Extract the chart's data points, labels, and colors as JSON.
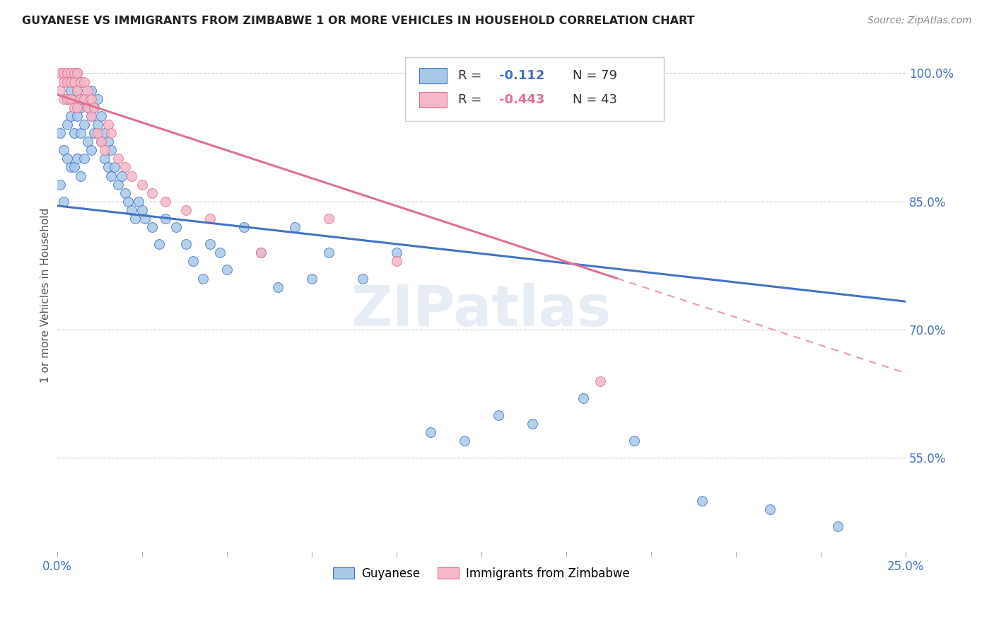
{
  "title": "GUYANESE VS IMMIGRANTS FROM ZIMBABWE 1 OR MORE VEHICLES IN HOUSEHOLD CORRELATION CHART",
  "source": "Source: ZipAtlas.com",
  "ylabel": "1 or more Vehicles in Household",
  "legend_blue_r_val": "-0.112",
  "legend_blue_n": "N = 79",
  "legend_pink_r_val": "-0.443",
  "legend_pink_n": "N = 43",
  "legend_label_blue": "Guyanese",
  "legend_label_pink": "Immigrants from Zimbabwe",
  "watermark": "ZIPatlas",
  "blue_color": "#a8c8e8",
  "pink_color": "#f4b8c8",
  "blue_line_color": "#4472C4",
  "pink_line_color": "#e07090",
  "blue_scatter": {
    "x": [
      0.001,
      0.001,
      0.002,
      0.002,
      0.003,
      0.003,
      0.003,
      0.004,
      0.004,
      0.004,
      0.005,
      0.005,
      0.005,
      0.005,
      0.006,
      0.006,
      0.006,
      0.006,
      0.007,
      0.007,
      0.007,
      0.007,
      0.008,
      0.008,
      0.008,
      0.009,
      0.009,
      0.01,
      0.01,
      0.01,
      0.011,
      0.011,
      0.012,
      0.012,
      0.013,
      0.013,
      0.014,
      0.014,
      0.015,
      0.015,
      0.016,
      0.016,
      0.017,
      0.018,
      0.019,
      0.02,
      0.021,
      0.022,
      0.023,
      0.024,
      0.025,
      0.026,
      0.028,
      0.03,
      0.032,
      0.035,
      0.038,
      0.04,
      0.043,
      0.045,
      0.048,
      0.05,
      0.055,
      0.06,
      0.065,
      0.07,
      0.075,
      0.08,
      0.09,
      0.1,
      0.11,
      0.12,
      0.13,
      0.14,
      0.155,
      0.17,
      0.19,
      0.21,
      0.23
    ],
    "y": [
      0.93,
      0.87,
      0.91,
      0.85,
      0.97,
      0.94,
      0.9,
      0.98,
      0.95,
      0.89,
      0.99,
      0.97,
      0.93,
      0.89,
      1.0,
      0.98,
      0.95,
      0.9,
      0.99,
      0.96,
      0.93,
      0.88,
      0.97,
      0.94,
      0.9,
      0.96,
      0.92,
      0.98,
      0.95,
      0.91,
      0.96,
      0.93,
      0.97,
      0.94,
      0.95,
      0.92,
      0.93,
      0.9,
      0.92,
      0.89,
      0.91,
      0.88,
      0.89,
      0.87,
      0.88,
      0.86,
      0.85,
      0.84,
      0.83,
      0.85,
      0.84,
      0.83,
      0.82,
      0.8,
      0.83,
      0.82,
      0.8,
      0.78,
      0.76,
      0.8,
      0.79,
      0.77,
      0.82,
      0.79,
      0.75,
      0.82,
      0.76,
      0.79,
      0.76,
      0.79,
      0.58,
      0.57,
      0.6,
      0.59,
      0.62,
      0.57,
      0.5,
      0.49,
      0.47
    ]
  },
  "pink_scatter": {
    "x": [
      0.001,
      0.001,
      0.002,
      0.002,
      0.002,
      0.003,
      0.003,
      0.003,
      0.004,
      0.004,
      0.004,
      0.005,
      0.005,
      0.005,
      0.006,
      0.006,
      0.006,
      0.007,
      0.007,
      0.008,
      0.008,
      0.009,
      0.009,
      0.01,
      0.01,
      0.011,
      0.012,
      0.013,
      0.014,
      0.015,
      0.016,
      0.018,
      0.02,
      0.022,
      0.025,
      0.028,
      0.032,
      0.038,
      0.045,
      0.06,
      0.08,
      0.1,
      0.16
    ],
    "y": [
      1.0,
      0.98,
      1.0,
      0.99,
      0.97,
      1.0,
      0.99,
      0.97,
      1.0,
      0.99,
      0.97,
      1.0,
      0.99,
      0.96,
      1.0,
      0.98,
      0.96,
      0.99,
      0.97,
      0.99,
      0.97,
      0.98,
      0.96,
      0.97,
      0.95,
      0.96,
      0.93,
      0.92,
      0.91,
      0.94,
      0.93,
      0.9,
      0.89,
      0.88,
      0.87,
      0.86,
      0.85,
      0.84,
      0.83,
      0.79,
      0.83,
      0.78,
      0.64
    ]
  },
  "xlim": [
    0.0,
    0.25
  ],
  "ylim": [
    0.44,
    1.04
  ],
  "ytick_vals": [
    0.55,
    0.7,
    0.85,
    1.0
  ],
  "ytick_labels": [
    "55.0%",
    "70.0%",
    "85.0%",
    "100.0%"
  ],
  "blue_line_x": [
    0.0,
    0.25
  ],
  "blue_line_y": [
    0.845,
    0.733
  ],
  "pink_line_x": [
    0.0,
    0.165
  ],
  "pink_line_y": [
    0.975,
    0.76
  ]
}
